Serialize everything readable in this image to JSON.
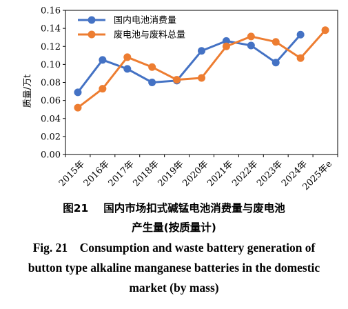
{
  "chart_data": {
    "type": "line",
    "categories": [
      "2015年",
      "2016年",
      "2017年",
      "2018年",
      "2019年",
      "2020年",
      "2021年",
      "2022年",
      "2023年",
      "2024年",
      "2025年e"
    ],
    "ylabel": "质量/万t",
    "ylim": [
      0,
      0.16
    ],
    "yticks": [
      "0.00",
      "0.02",
      "0.04",
      "0.06",
      "0.08",
      "0.10",
      "0.12",
      "0.14",
      "0.16"
    ],
    "grid": false,
    "legend_position": "top-left",
    "series": [
      {
        "name": "国内电池消费量",
        "color": "#4472C4",
        "values": [
          0.069,
          0.105,
          0.095,
          0.08,
          0.082,
          0.115,
          0.126,
          0.121,
          0.102,
          0.133,
          null
        ]
      },
      {
        "name": "废电池与废料总量",
        "color": "#ED7D31",
        "values": [
          0.052,
          0.073,
          0.108,
          0.097,
          0.083,
          0.085,
          0.12,
          0.131,
          0.125,
          0.107,
          0.138
        ]
      }
    ]
  },
  "caption": {
    "cn_fig_num": "图21",
    "cn_title_line1": "国内市场扣式碱锰电池消费量与废电池",
    "cn_title_line2": "产生量(按质量计)",
    "en_line1": "Fig. 21    Consumption and waste battery generation of",
    "en_line2": "button type alkaline manganese batteries in the domestic",
    "en_line3": "market (by mass)"
  }
}
